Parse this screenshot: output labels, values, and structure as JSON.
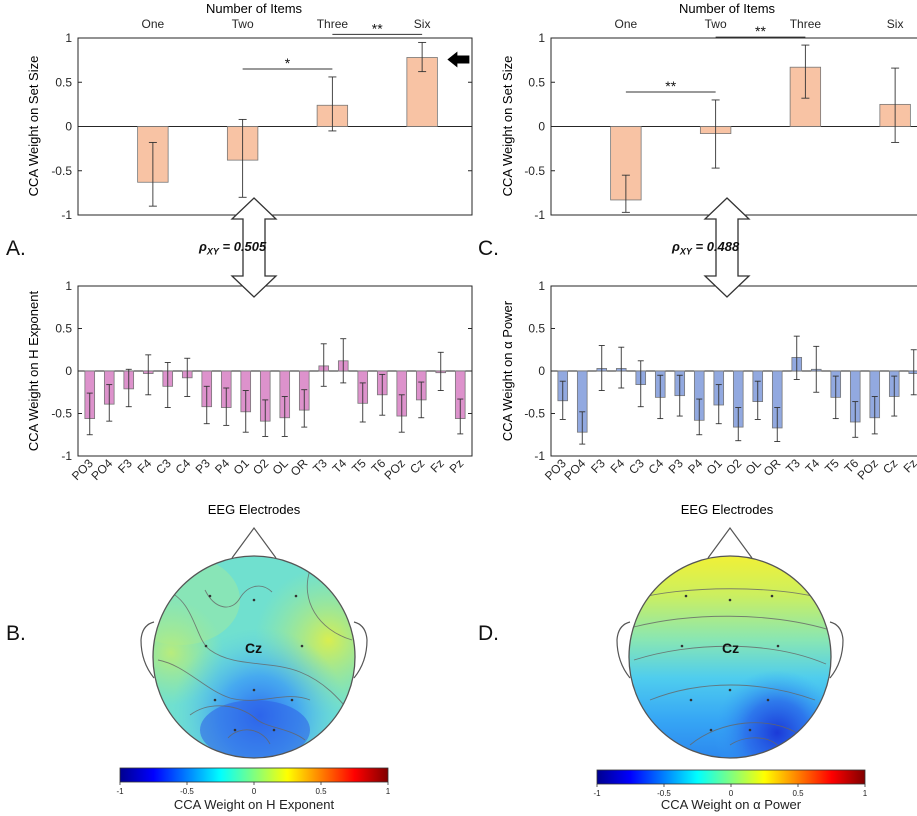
{
  "colors": {
    "setsize_bar": "#f8c3a4",
    "h_bar": "#dd92cc",
    "alpha_bar": "#92a9e0"
  },
  "panel_letters": [
    "A.",
    "B.",
    "C.",
    "D."
  ],
  "annotations": {
    "rho_left": "0.505",
    "rho_right": "0.488",
    "cz_label": "Cz"
  },
  "chart_data": [
    {
      "id": "A-top",
      "type": "bar",
      "title": "Number of Items",
      "ylabel": "CCA Weight on Set Size",
      "ylim": [
        -1,
        1
      ],
      "yticks": [
        "-1",
        "-0.5",
        "0",
        "0.5",
        "1"
      ],
      "categories": [
        "One",
        "Two",
        "Three",
        "Six"
      ],
      "values": [
        -0.63,
        -0.38,
        0.24,
        0.78
      ],
      "err_low": [
        -0.9,
        -0.8,
        -0.05,
        0.62
      ],
      "err_high": [
        -0.18,
        0.08,
        0.56,
        0.95
      ],
      "significance": [
        {
          "from": 1,
          "to": 2,
          "label": "*"
        },
        {
          "from": 2,
          "to": 3,
          "label": "**"
        }
      ],
      "arrow_at": 3
    },
    {
      "id": "C-top",
      "type": "bar",
      "title": "Number of Items",
      "ylabel": "CCA Weight on Set Size",
      "ylim": [
        -1,
        1
      ],
      "yticks": [
        "-1",
        "-0.5",
        "0",
        "0.5",
        "1"
      ],
      "categories": [
        "One",
        "Two",
        "Three",
        "Six"
      ],
      "values": [
        -0.83,
        -0.08,
        0.67,
        0.25
      ],
      "err_low": [
        -0.97,
        -0.47,
        0.32,
        -0.18
      ],
      "err_high": [
        -0.55,
        0.3,
        0.92,
        0.66
      ],
      "significance": [
        {
          "from": 0,
          "to": 1,
          "label": "**"
        },
        {
          "from": 1,
          "to": 2,
          "label": "**"
        }
      ],
      "arrow_at": 3
    },
    {
      "id": "A-bottom",
      "type": "bar",
      "xlabel": "EEG Electrodes",
      "ylabel": "CCA Weight on H Exponent",
      "ylim": [
        -1,
        1
      ],
      "yticks": [
        "-1",
        "-0.5",
        "0",
        "0.5",
        "1"
      ],
      "categories": [
        "PO3",
        "PO4",
        "F3",
        "F4",
        "C3",
        "C4",
        "P3",
        "P4",
        "O1",
        "O2",
        "OL",
        "OR",
        "T3",
        "T4",
        "T5",
        "T6",
        "POz",
        "Cz",
        "Fz",
        "Pz"
      ],
      "values": [
        -0.56,
        -0.39,
        -0.21,
        -0.03,
        -0.18,
        -0.08,
        -0.42,
        -0.43,
        -0.48,
        -0.59,
        -0.55,
        -0.46,
        0.06,
        0.12,
        -0.38,
        -0.28,
        -0.53,
        -0.34,
        -0.02,
        -0.56
      ],
      "err_low": [
        -0.75,
        -0.59,
        -0.42,
        -0.28,
        -0.43,
        -0.3,
        -0.62,
        -0.64,
        -0.72,
        -0.77,
        -0.77,
        -0.66,
        -0.18,
        -0.14,
        -0.6,
        -0.52,
        -0.72,
        -0.55,
        -0.23,
        -0.74
      ],
      "err_high": [
        -0.26,
        -0.16,
        0.02,
        0.19,
        0.1,
        0.15,
        -0.18,
        -0.2,
        -0.23,
        -0.34,
        -0.3,
        -0.22,
        0.32,
        0.38,
        -0.14,
        -0.04,
        -0.28,
        -0.13,
        0.22,
        -0.33
      ]
    },
    {
      "id": "C-bottom",
      "type": "bar",
      "xlabel": "EEG Electrodes",
      "ylabel": "CCA Weight on α Power",
      "ylim": [
        -1,
        1
      ],
      "yticks": [
        "-1",
        "-0.5",
        "0",
        "0.5",
        "1"
      ],
      "categories": [
        "PO3",
        "PO4",
        "F3",
        "F4",
        "C3",
        "C4",
        "P3",
        "P4",
        "O1",
        "O2",
        "OL",
        "OR",
        "T3",
        "T4",
        "T5",
        "T6",
        "POz",
        "Cz",
        "Fz",
        "Pz"
      ],
      "values": [
        -0.35,
        -0.72,
        0.03,
        0.03,
        -0.16,
        -0.31,
        -0.29,
        -0.58,
        -0.4,
        -0.66,
        -0.36,
        -0.67,
        0.16,
        0.02,
        -0.31,
        -0.6,
        -0.55,
        -0.3,
        -0.03,
        -0.41
      ],
      "err_low": [
        -0.57,
        -0.86,
        -0.23,
        -0.2,
        -0.42,
        -0.56,
        -0.53,
        -0.75,
        -0.62,
        -0.82,
        -0.57,
        -0.83,
        -0.1,
        -0.25,
        -0.56,
        -0.78,
        -0.74,
        -0.53,
        -0.28,
        -0.65
      ],
      "err_high": [
        -0.12,
        -0.48,
        0.3,
        0.28,
        0.12,
        -0.05,
        -0.05,
        -0.33,
        -0.16,
        -0.43,
        -0.12,
        -0.43,
        0.41,
        0.29,
        -0.06,
        -0.36,
        -0.3,
        -0.06,
        0.25,
        -0.15
      ]
    },
    {
      "id": "B-map",
      "type": "heatmap",
      "clim": [
        -1,
        1
      ],
      "colorbar_ticks": [
        "-1",
        "-0.5",
        "0",
        "0.5",
        "1"
      ],
      "colorbar_label": "CCA Weight on H Exponent"
    },
    {
      "id": "D-map",
      "type": "heatmap",
      "clim": [
        -1,
        1
      ],
      "colorbar_ticks": [
        "-1",
        "-0.5",
        "0",
        "0.5",
        "1"
      ],
      "colorbar_label": "CCA Weight on α Power"
    }
  ]
}
